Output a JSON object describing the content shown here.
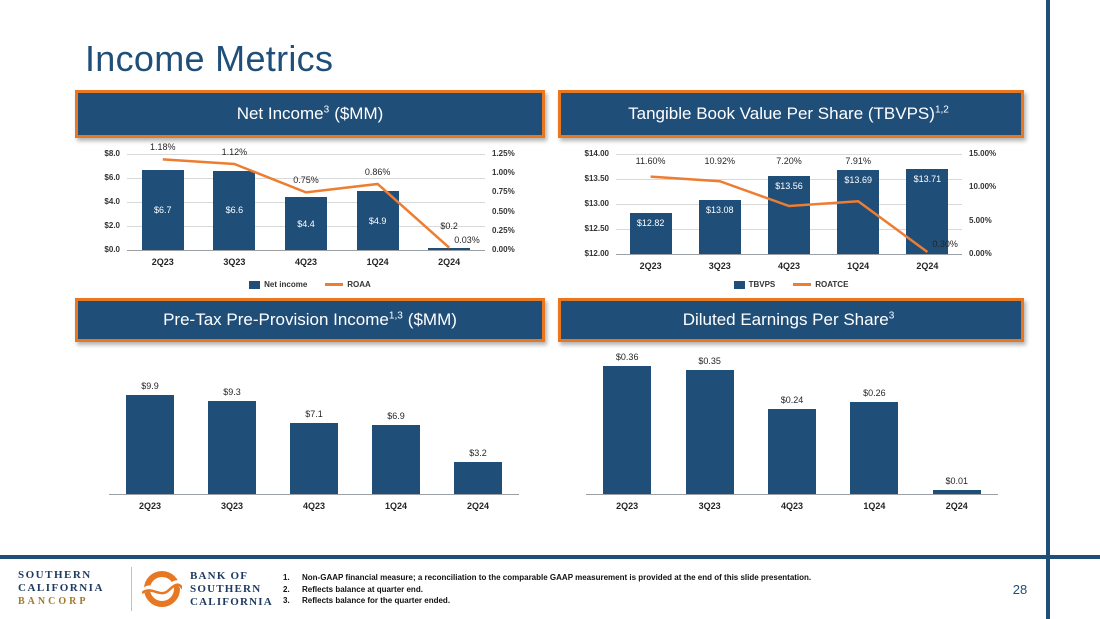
{
  "slide": {
    "title": "Income Metrics",
    "page_number": "28",
    "accent_navy": "#1F4E79",
    "accent_orange": "#E87722",
    "bar_color": "#1F4E79",
    "line_color": "#ED7D31"
  },
  "chart_data": [
    {
      "type": "bar",
      "subtype": "bar-with-line",
      "title": {
        "text": "Net Income",
        "sup": "3",
        "suffix": "($MM)"
      },
      "categories": [
        "2Q23",
        "3Q23",
        "4Q23",
        "1Q24",
        "2Q24"
      ],
      "bar_series": {
        "name": "Net income",
        "values": [
          6.7,
          6.6,
          4.4,
          4.9,
          0.2
        ],
        "labels": [
          "$6.7",
          "$6.6",
          "$4.4",
          "$4.9",
          "$0.2"
        ]
      },
      "line_series": {
        "name": "ROAA",
        "values": [
          1.18,
          1.12,
          0.75,
          0.86,
          0.03
        ],
        "labels": [
          "1.18%",
          "1.12%",
          "0.75%",
          "0.86%",
          "0.03%"
        ]
      },
      "left_axis": {
        "min": 0,
        "max": 8,
        "ticks": [
          {
            "v": 0,
            "label": "$0.0"
          },
          {
            "v": 2,
            "label": "$2.0"
          },
          {
            "v": 4,
            "label": "$4.0"
          },
          {
            "v": 6,
            "label": "$6.0"
          },
          {
            "v": 8,
            "label": "$8.0"
          }
        ]
      },
      "right_axis": {
        "min": 0,
        "max": 1.25,
        "ticks": [
          {
            "v": 0,
            "label": "0.00%"
          },
          {
            "v": 0.25,
            "label": "0.25%"
          },
          {
            "v": 0.5,
            "label": "0.50%"
          },
          {
            "v": 0.75,
            "label": "0.75%"
          },
          {
            "v": 1,
            "label": "1.00%"
          },
          {
            "v": 1.25,
            "label": "1.25%"
          }
        ]
      },
      "grid": true,
      "legend": [
        {
          "swatch": "bar",
          "label": "Net income"
        },
        {
          "swatch": "line",
          "label": "ROAA"
        }
      ]
    },
    {
      "type": "bar",
      "subtype": "bar-with-line",
      "title": {
        "text": "Tangible Book Value Per Share (TBVPS)",
        "sup": "1,2",
        "suffix": ""
      },
      "categories": [
        "2Q23",
        "3Q23",
        "4Q23",
        "1Q24",
        "2Q24"
      ],
      "bar_series": {
        "name": "TBVPS",
        "values": [
          12.82,
          13.08,
          13.56,
          13.69,
          13.71
        ],
        "labels": [
          "$12.82",
          "$13.08",
          "$13.56",
          "$13.69",
          "$13.71"
        ]
      },
      "line_series": {
        "name": "ROATCE",
        "values": [
          11.6,
          10.92,
          7.2,
          7.91,
          0.3
        ],
        "labels": [
          "11.60%",
          "10.92%",
          "7.20%",
          "7.91%",
          "0.30%"
        ]
      },
      "left_axis": {
        "min": 12,
        "max": 14,
        "ticks": [
          {
            "v": 12,
            "label": "$12.00"
          },
          {
            "v": 12.5,
            "label": "$12.50"
          },
          {
            "v": 13,
            "label": "$13.00"
          },
          {
            "v": 13.5,
            "label": "$13.50"
          },
          {
            "v": 14,
            "label": "$14.00"
          }
        ]
      },
      "right_axis": {
        "min": 0,
        "max": 15,
        "ticks": [
          {
            "v": 0,
            "label": "0.00%"
          },
          {
            "v": 5,
            "label": "5.00%"
          },
          {
            "v": 10,
            "label": "10.00%"
          },
          {
            "v": 15,
            "label": "15.00%"
          }
        ]
      },
      "grid": true,
      "legend": [
        {
          "swatch": "bar",
          "label": "TBVPS"
        },
        {
          "swatch": "line",
          "label": "ROATCE"
        }
      ]
    },
    {
      "type": "bar",
      "title": {
        "text": "Pre-Tax Pre-Provision Income",
        "sup": "1,3",
        "suffix": "($MM)"
      },
      "categories": [
        "2Q23",
        "3Q23",
        "4Q23",
        "1Q24",
        "2Q24"
      ],
      "bar_series": {
        "name": "Pre-tax pre-provision income",
        "values": [
          9.9,
          9.3,
          7.1,
          6.9,
          3.2
        ],
        "labels": [
          "$9.9",
          "$9.3",
          "$7.1",
          "$6.9",
          "$3.2"
        ]
      },
      "left_axis": {
        "min": 0,
        "max": 11
      }
    },
    {
      "type": "bar",
      "title": {
        "text": "Diluted Earnings Per Share",
        "sup": "3",
        "suffix": ""
      },
      "categories": [
        "2Q23",
        "3Q23",
        "4Q23",
        "1Q24",
        "2Q24"
      ],
      "bar_series": {
        "name": "Diluted EPS",
        "values": [
          0.36,
          0.35,
          0.24,
          0.26,
          0.01
        ],
        "labels": [
          "$0.36",
          "$0.35",
          "$0.24",
          "$0.26",
          "$0.01"
        ]
      },
      "left_axis": {
        "min": 0,
        "max": 0.4
      }
    }
  ],
  "footer": {
    "bancorp_logo": {
      "line1": "SOUTHERN",
      "line2": "CALIFORNIA",
      "line3": "BANCORP"
    },
    "bank_logo": {
      "line1": "BANK OF",
      "line2": "SOUTHERN",
      "line3": "CALIFORNIA"
    },
    "footnotes": [
      {
        "num": "1.",
        "text": "Non-GAAP financial measure; a reconciliation to the comparable GAAP measurement is provided at the end of this slide presentation."
      },
      {
        "num": "2.",
        "text": "Reflects balance at quarter end."
      },
      {
        "num": "3.",
        "text": "Reflects balance for the quarter ended."
      }
    ]
  }
}
